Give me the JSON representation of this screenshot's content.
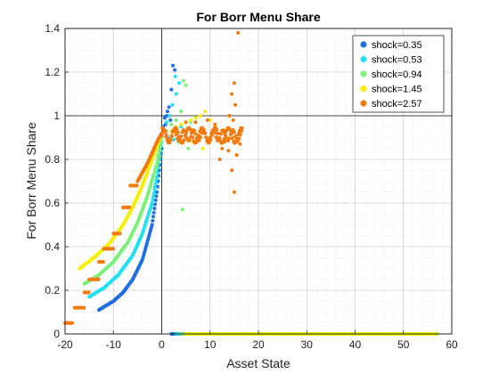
{
  "chart_data": {
    "type": "scatter",
    "title": "For Borr Menu Share",
    "xlabel": "Asset State",
    "ylabel": "For Borr Menu Share",
    "xlim": [
      -20,
      60
    ],
    "ylim": [
      0,
      1.4
    ],
    "xticks": [
      "-20",
      "-10",
      "0",
      "10",
      "20",
      "30",
      "40",
      "50",
      "60"
    ],
    "yticks": [
      "0",
      "0.2",
      "0.4",
      "0.6",
      "0.8",
      "1",
      "1.2",
      "1.4"
    ],
    "grid": "on",
    "legend_position": "top-right",
    "reference_lines": {
      "x": 0,
      "y": 1
    },
    "series": [
      {
        "name": "shock=0.35",
        "color": "#1f6fe0",
        "borrowing_curve": [
          [
            -13,
            0.11
          ],
          [
            -10,
            0.15
          ],
          [
            -8,
            0.19
          ],
          [
            -6,
            0.25
          ],
          [
            -4,
            0.34
          ],
          [
            -2,
            0.5
          ],
          [
            -1,
            0.65
          ],
          [
            0,
            0.85
          ]
        ],
        "flat_zero": [
          [
            2,
            0
          ],
          [
            57,
            0
          ]
        ],
        "outliers": [
          [
            0.3,
            0.95
          ],
          [
            0.6,
            0.99
          ],
          [
            1,
            1.0
          ],
          [
            1.5,
            1.04
          ],
          [
            2,
            1.12
          ],
          [
            2.3,
            1.23
          ],
          [
            2.7,
            1.21
          ],
          [
            1.2,
            1.02
          ],
          [
            0.8,
            0.96
          ],
          [
            1.8,
            0.98
          ]
        ]
      },
      {
        "name": "shock=0.53",
        "color": "#22e0f0",
        "borrowing_curve": [
          [
            -15,
            0.17
          ],
          [
            -12,
            0.21
          ],
          [
            -9,
            0.27
          ],
          [
            -6,
            0.36
          ],
          [
            -4,
            0.46
          ],
          [
            -2,
            0.6
          ],
          [
            -1,
            0.72
          ],
          [
            0,
            0.88
          ]
        ],
        "flat_zero": [
          [
            3,
            0
          ],
          [
            57,
            0
          ]
        ],
        "outliers": [
          [
            0.5,
            0.93
          ],
          [
            1,
            0.97
          ],
          [
            1.6,
            1.0
          ],
          [
            2.2,
            1.05
          ],
          [
            3,
            1.1
          ],
          [
            3.6,
            1.15
          ],
          [
            2.8,
            1.18
          ],
          [
            4,
            0.95
          ],
          [
            1.4,
            0.9
          ],
          [
            2.5,
            0.89
          ]
        ]
      },
      {
        "name": "shock=0.94",
        "color": "#7df07a",
        "borrowing_curve": [
          [
            -16,
            0.23
          ],
          [
            -13,
            0.27
          ],
          [
            -10,
            0.33
          ],
          [
            -7,
            0.42
          ],
          [
            -5,
            0.51
          ],
          [
            -3,
            0.63
          ],
          [
            -1,
            0.78
          ],
          [
            0,
            0.9
          ]
        ],
        "flat_zero": [
          [
            4,
            0
          ],
          [
            57,
            0
          ]
        ],
        "outliers": [
          [
            1,
            0.93
          ],
          [
            2,
            0.96
          ],
          [
            3,
            0.98
          ],
          [
            4,
            1.02
          ],
          [
            5,
            1.14
          ],
          [
            4.5,
            1.16
          ],
          [
            5.5,
            0.85
          ],
          [
            4.3,
            0.57
          ],
          [
            6.5,
            0.92
          ],
          [
            3.5,
            0.88
          ],
          [
            6,
            0.97
          ]
        ]
      },
      {
        "name": "shock=1.45",
        "color": "#f5f000",
        "borrowing_curve": [
          [
            -17,
            0.3
          ],
          [
            -14,
            0.35
          ],
          [
            -11,
            0.41
          ],
          [
            -8,
            0.5
          ],
          [
            -6,
            0.58
          ],
          [
            -4,
            0.68
          ],
          [
            -2,
            0.8
          ],
          [
            0,
            0.92
          ]
        ],
        "flat_zero": [
          [
            5,
            0
          ],
          [
            57,
            0
          ]
        ],
        "outliers": [
          [
            2,
            0.93
          ],
          [
            3,
            0.95
          ],
          [
            4,
            0.96
          ],
          [
            5,
            0.97
          ],
          [
            6,
            0.98
          ],
          [
            7,
            0.99
          ],
          [
            8,
            1.0
          ],
          [
            9,
            1.02
          ],
          [
            10,
            0.98
          ],
          [
            11,
            0.95
          ],
          [
            6.5,
            0.88
          ],
          [
            8.5,
            0.85
          ]
        ]
      },
      {
        "name": "shock=2.57",
        "color": "#f27a0d",
        "steps": [
          [
            -20,
            -18.5,
            0.05
          ],
          [
            -18,
            -16,
            0.12
          ],
          [
            -16,
            -15,
            0.19
          ],
          [
            -15,
            -13,
            0.25
          ],
          [
            -13,
            -12,
            0.33
          ],
          [
            -12,
            -10,
            0.39
          ],
          [
            -10,
            -8.5,
            0.46
          ],
          [
            -8,
            -6.5,
            0.58
          ],
          [
            -6.5,
            -5,
            0.68
          ]
        ],
        "curve_after_steps": [
          [
            -5,
            0.7
          ],
          [
            -4,
            0.74
          ],
          [
            -3,
            0.78
          ],
          [
            -2,
            0.83
          ],
          [
            -1,
            0.88
          ],
          [
            0,
            0.92
          ]
        ],
        "band": [
          [
            0,
            0.91
          ],
          [
            16.5,
            0.91
          ]
        ],
        "outliers": [
          [
            15.8,
            1.38
          ],
          [
            15,
            1.15
          ],
          [
            14.5,
            1.1
          ],
          [
            15.2,
            1.05
          ],
          [
            14,
            1.0
          ],
          [
            14.8,
            0.98
          ],
          [
            13,
            0.88
          ],
          [
            12.5,
            0.85
          ],
          [
            13.8,
            0.84
          ],
          [
            14.5,
            0.75
          ],
          [
            15,
            0.65
          ],
          [
            12,
            0.8
          ],
          [
            16,
            0.92
          ],
          [
            11,
            0.96
          ],
          [
            9.5,
            0.98
          ],
          [
            7,
            0.97
          ],
          [
            5,
            0.97
          ],
          [
            16.2,
            0.87
          ],
          [
            15.5,
            0.82
          ]
        ]
      }
    ]
  }
}
